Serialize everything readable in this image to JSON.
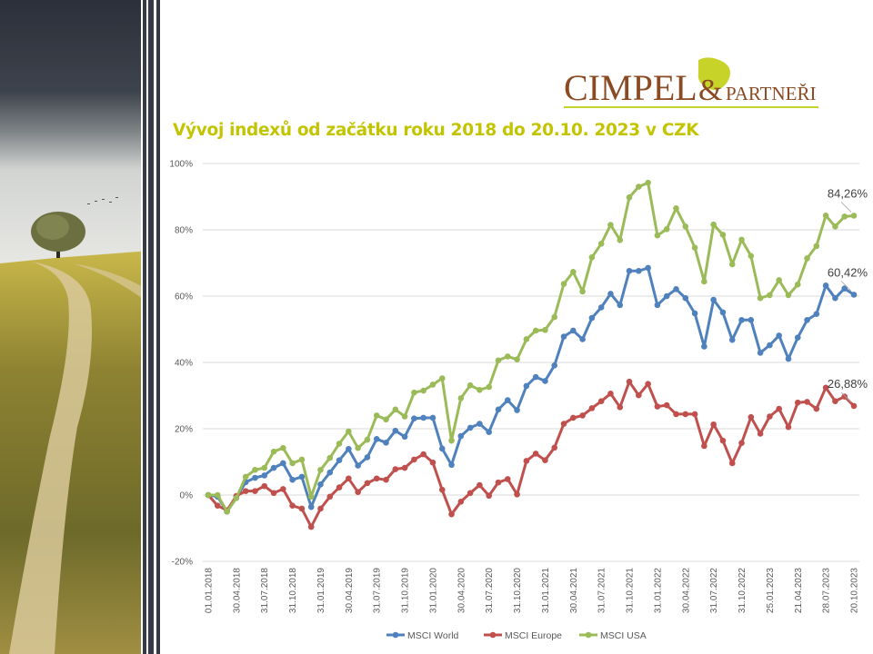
{
  "logo": {
    "text_main": "CIMPEL",
    "text_amp": "&",
    "text_sub": "PARTNEŘI"
  },
  "title": "Vývoj indexů od začátku roku 2018 do 20.10. 2023 v CZK",
  "chart_data": {
    "type": "line",
    "title": "Vývoj indexů od začátku roku 2018 do 20.10. 2023 v CZK",
    "xlabel": "",
    "ylabel": "",
    "ylim": [
      -20,
      100
    ],
    "yticks": [
      -20,
      0,
      20,
      40,
      60,
      80,
      100
    ],
    "ytick_labels": [
      "-20%",
      "0%",
      "20%",
      "40%",
      "60%",
      "80%",
      "100%"
    ],
    "grid": true,
    "legend_position": "bottom",
    "xtick_labels": [
      "01.01.2018",
      "30.04.2018",
      "31.07.2018",
      "31.10.2018",
      "31.01.2019",
      "30.04.2019",
      "31.07.2019",
      "31.10.2019",
      "31.01.2020",
      "30.04.2020",
      "31.07.2020",
      "31.10.2020",
      "31.01.2021",
      "30.04.2021",
      "31.07.2021",
      "31.10.2021",
      "31.01.2022",
      "30.04.2022",
      "31.07.2022",
      "31.10.2022",
      "25.01.2023",
      "21.04.2023",
      "28.07.2023",
      "20.10.2023"
    ],
    "n_points": 70,
    "series": [
      {
        "name": "MSCI World",
        "color": "#4f81bd",
        "end_label": "60,42%",
        "values": [
          0,
          -0.5,
          -5.0,
          -0.9,
          3.9,
          5.2,
          5.9,
          8.2,
          9.6,
          4.6,
          5.5,
          -3.6,
          3.2,
          6.8,
          10.5,
          13.9,
          8.9,
          11.4,
          16.9,
          15.8,
          19.4,
          17.6,
          23.1,
          23.3,
          23.3,
          14.0,
          9.1,
          17.8,
          20.3,
          21.5,
          19.0,
          25.8,
          28.6,
          25.6,
          32.9,
          35.6,
          34.4,
          39.1,
          47.8,
          49.6,
          47.0,
          53.4,
          56.6,
          60.7,
          57.3,
          67.6,
          67.6,
          68.5,
          57.3,
          60.0,
          62.1,
          59.4,
          54.8,
          44.8,
          58.9,
          55.1,
          46.8,
          52.8,
          52.8,
          42.9,
          45.2,
          48.1,
          41.1,
          47.5,
          52.8,
          54.6,
          63.2,
          59.4,
          62.3,
          60.42
        ]
      },
      {
        "name": "MSCI Europe",
        "color": "#c0504d",
        "end_label": "26,88%",
        "values": [
          0,
          -3.2,
          -4.6,
          -0.3,
          1.2,
          1.2,
          2.7,
          0.6,
          1.8,
          -3.2,
          -4.1,
          -9.6,
          -4.1,
          -0.5,
          2.3,
          5.0,
          0.9,
          3.6,
          5.0,
          4.6,
          7.8,
          8.2,
          10.7,
          12.3,
          9.8,
          1.6,
          -5.8,
          -2.0,
          0.6,
          3.0,
          -0.2,
          3.8,
          4.8,
          0.2,
          10.3,
          12.5,
          10.5,
          14.3,
          21.5,
          23.3,
          24.0,
          26.2,
          28.3,
          30.6,
          26.5,
          34.2,
          30.1,
          33.5,
          26.7,
          27.1,
          24.4,
          24.4,
          24.4,
          14.8,
          21.3,
          16.4,
          9.6,
          15.7,
          23.5,
          18.5,
          23.7,
          26.0,
          20.5,
          27.9,
          28.1,
          26.0,
          32.4,
          28.3,
          29.7,
          26.88
        ]
      },
      {
        "name": "MSCI USA",
        "color": "#9bbb59",
        "end_label": "84,26%",
        "values": [
          0,
          0,
          -5.0,
          -0.9,
          5.5,
          7.6,
          8.2,
          13.1,
          14.2,
          9.6,
          10.7,
          -0.5,
          7.6,
          11.2,
          15.5,
          19.2,
          14.2,
          16.7,
          24.0,
          22.8,
          25.8,
          23.7,
          30.9,
          31.5,
          33.3,
          35.2,
          16.4,
          29.2,
          33.1,
          31.7,
          32.6,
          40.6,
          41.8,
          40.9,
          47.0,
          49.6,
          49.8,
          53.7,
          63.7,
          67.3,
          61.4,
          71.7,
          75.8,
          81.5,
          76.9,
          89.8,
          93.0,
          94.2,
          78.3,
          80.2,
          86.5,
          81.0,
          74.6,
          64.4,
          81.6,
          78.5,
          69.6,
          77.0,
          72.1,
          59.4,
          60.3,
          64.8,
          60.3,
          63.5,
          71.4,
          75.1,
          84.3,
          81.0,
          84.0,
          84.26
        ]
      }
    ]
  }
}
